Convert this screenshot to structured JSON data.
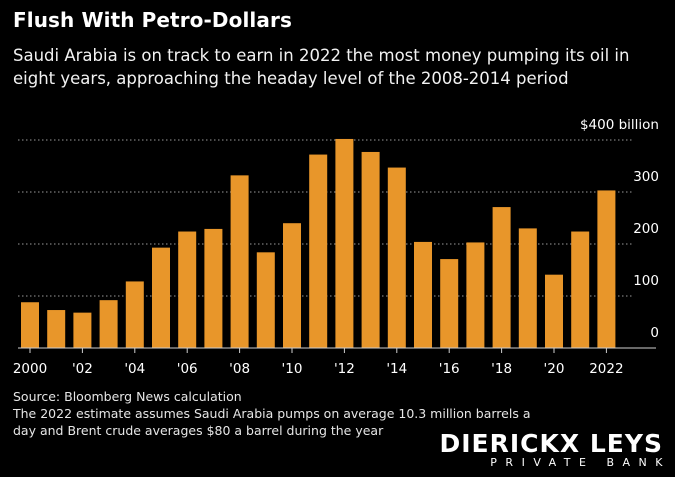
{
  "header": {
    "title": "Flush With Petro-Dollars",
    "subtitle": "Saudi Arabia is on track to earn in 2022 the most money pumping its oil in eight years, approaching the headay level of the 2008-2014 period"
  },
  "chart_data": {
    "type": "bar",
    "categories": [
      "2000",
      "2001",
      "2002",
      "2003",
      "2004",
      "2005",
      "2006",
      "2007",
      "2008",
      "2009",
      "2010",
      "2011",
      "2012",
      "2013",
      "2014",
      "2015",
      "2016",
      "2017",
      "2018",
      "2019",
      "2020",
      "2021",
      "2022"
    ],
    "values": [
      88,
      73,
      68,
      92,
      128,
      193,
      224,
      229,
      332,
      184,
      240,
      372,
      402,
      377,
      347,
      204,
      171,
      203,
      271,
      230,
      141,
      224,
      303
    ],
    "x_tick_labels": [
      "2000",
      "",
      "'02",
      "",
      "'04",
      "",
      "'06",
      "",
      "'08",
      "",
      "'10",
      "",
      "'12",
      "",
      "'14",
      "",
      "'16",
      "",
      "'18",
      "",
      "'20",
      "",
      "2022"
    ],
    "y_tick_labels": [
      "0",
      "100",
      "200",
      "300",
      "$400 billion"
    ],
    "y_ticks": [
      0,
      100,
      200,
      300,
      400
    ],
    "ylim": [
      0,
      400
    ],
    "bar_color": "#e8962a",
    "grid": true,
    "title": "Flush With Petro-Dollars",
    "xlabel": "",
    "ylabel": ""
  },
  "footer": {
    "source": "Source: Bloomberg News calculation",
    "note": "The 2022 estimate assumes Saudi Arabia pumps on average 10.3 million barrels a day and Brent crude averages $80 a barrel during the year"
  },
  "brand": {
    "name": "DIERICKX LEYS",
    "tagline": "PRIVATE BANK"
  }
}
